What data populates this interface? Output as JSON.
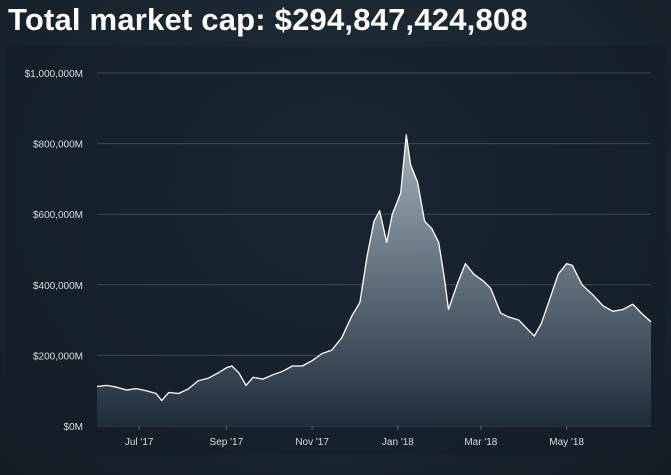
{
  "header": {
    "label": "Total market cap:",
    "value": "$294,847,424,808"
  },
  "colors": {
    "background": "#1a2733",
    "line": "#ffffff",
    "fill_top": "#a9b8c3",
    "fill_bottom": "#1f2e3a",
    "grid": "#5a6a76"
  },
  "chart_data": {
    "type": "area",
    "title": "Total market cap: $294,847,424,808",
    "xlabel": "",
    "ylabel": "",
    "ylim": [
      0,
      1000000
    ],
    "y_unit": "M USD",
    "y_ticks": [
      {
        "value": 0,
        "label": "$0M"
      },
      {
        "value": 200000,
        "label": "$200,000M"
      },
      {
        "value": 400000,
        "label": "$400,000M"
      },
      {
        "value": 600000,
        "label": "$600,000M"
      },
      {
        "value": 800000,
        "label": "$800,000M"
      },
      {
        "value": 1000000,
        "label": "$1,000,000M"
      }
    ],
    "xlim": [
      "2017-06-01",
      "2018-06-30"
    ],
    "x_ticks": [
      {
        "value": "2017-07-01",
        "label": "Jul '17"
      },
      {
        "value": "2017-09-01",
        "label": "Sep '17"
      },
      {
        "value": "2017-11-01",
        "label": "Nov '17"
      },
      {
        "value": "2018-01-01",
        "label": "Jan '18"
      },
      {
        "value": "2018-03-01",
        "label": "Mar '18"
      },
      {
        "value": "2018-05-01",
        "label": "May '18"
      }
    ],
    "grid": true,
    "series": [
      {
        "points": [
          [
            "2017-06-01",
            112000
          ],
          [
            "2017-06-08",
            115000
          ],
          [
            "2017-06-15",
            110000
          ],
          [
            "2017-06-22",
            102000
          ],
          [
            "2017-06-29",
            106000
          ],
          [
            "2017-07-06",
            100000
          ],
          [
            "2017-07-13",
            92000
          ],
          [
            "2017-07-17",
            72000
          ],
          [
            "2017-07-22",
            95000
          ],
          [
            "2017-07-29",
            92000
          ],
          [
            "2017-08-05",
            105000
          ],
          [
            "2017-08-12",
            128000
          ],
          [
            "2017-08-19",
            135000
          ],
          [
            "2017-08-26",
            150000
          ],
          [
            "2017-09-01",
            165000
          ],
          [
            "2017-09-05",
            170000
          ],
          [
            "2017-09-10",
            150000
          ],
          [
            "2017-09-15",
            115000
          ],
          [
            "2017-09-20",
            138000
          ],
          [
            "2017-09-27",
            133000
          ],
          [
            "2017-10-04",
            145000
          ],
          [
            "2017-10-11",
            155000
          ],
          [
            "2017-10-18",
            170000
          ],
          [
            "2017-10-25",
            170000
          ],
          [
            "2017-11-01",
            185000
          ],
          [
            "2017-11-08",
            205000
          ],
          [
            "2017-11-15",
            215000
          ],
          [
            "2017-11-22",
            250000
          ],
          [
            "2017-11-29",
            310000
          ],
          [
            "2017-12-05",
            350000
          ],
          [
            "2017-12-10",
            480000
          ],
          [
            "2017-12-15",
            580000
          ],
          [
            "2017-12-19",
            610000
          ],
          [
            "2017-12-24",
            520000
          ],
          [
            "2017-12-28",
            600000
          ],
          [
            "2018-01-03",
            660000
          ],
          [
            "2018-01-07",
            825000
          ],
          [
            "2018-01-10",
            740000
          ],
          [
            "2018-01-15",
            690000
          ],
          [
            "2018-01-20",
            580000
          ],
          [
            "2018-01-25",
            560000
          ],
          [
            "2018-01-30",
            520000
          ],
          [
            "2018-02-03",
            420000
          ],
          [
            "2018-02-06",
            330000
          ],
          [
            "2018-02-12",
            400000
          ],
          [
            "2018-02-18",
            460000
          ],
          [
            "2018-02-24",
            430000
          ],
          [
            "2018-03-03",
            410000
          ],
          [
            "2018-03-08",
            390000
          ],
          [
            "2018-03-15",
            320000
          ],
          [
            "2018-03-20",
            310000
          ],
          [
            "2018-03-28",
            300000
          ],
          [
            "2018-04-03",
            275000
          ],
          [
            "2018-04-08",
            255000
          ],
          [
            "2018-04-13",
            290000
          ],
          [
            "2018-04-19",
            360000
          ],
          [
            "2018-04-25",
            430000
          ],
          [
            "2018-05-01",
            460000
          ],
          [
            "2018-05-05",
            455000
          ],
          [
            "2018-05-12",
            400000
          ],
          [
            "2018-05-20",
            370000
          ],
          [
            "2018-05-27",
            340000
          ],
          [
            "2018-06-03",
            325000
          ],
          [
            "2018-06-10",
            330000
          ],
          [
            "2018-06-17",
            345000
          ],
          [
            "2018-06-23",
            320000
          ],
          [
            "2018-06-30",
            295000
          ]
        ]
      }
    ]
  }
}
